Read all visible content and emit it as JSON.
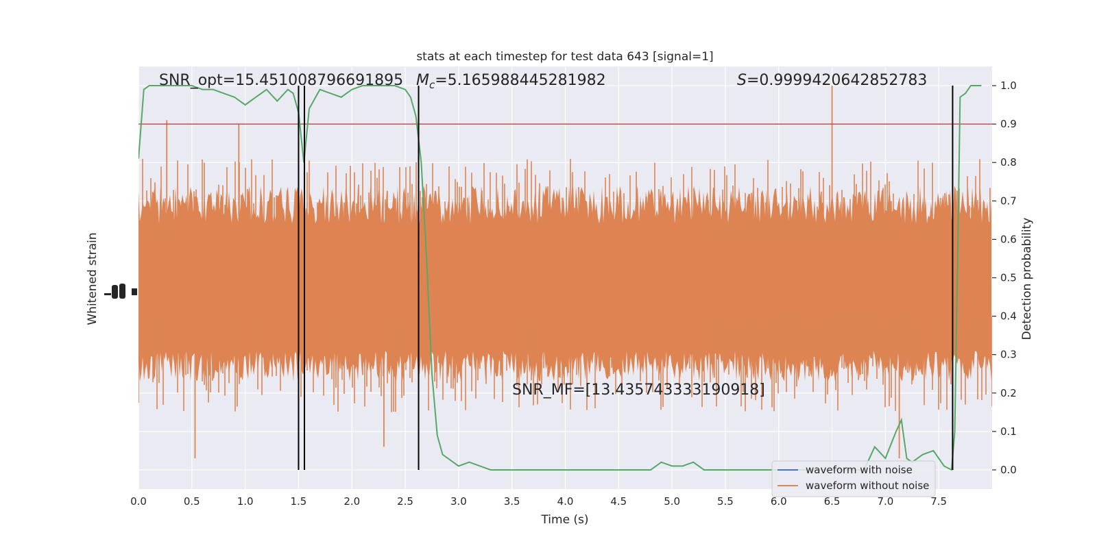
{
  "chart_data": {
    "type": "line",
    "title": "stats at each timestep for test data 643 [signal=1]",
    "xlabel": "Time (s)",
    "ylabel_left": "Whitened strain",
    "ylabel_right": "Detection probability",
    "xlim": [
      0.0,
      8.0
    ],
    "ylim_right": [
      -0.05,
      1.05
    ],
    "xticks": [
      0.0,
      0.5,
      1.0,
      1.5,
      2.0,
      2.5,
      3.0,
      3.5,
      4.0,
      4.5,
      5.0,
      5.5,
      6.0,
      6.5,
      7.0,
      7.5
    ],
    "xtick_labels": [
      "0.0",
      "0.5",
      "1.0",
      "1.5",
      "2.0",
      "2.5",
      "3.0",
      "3.5",
      "4.0",
      "4.5",
      "5.0",
      "5.5",
      "6.0",
      "6.5",
      "7.0",
      "7.5"
    ],
    "yticks_right": [
      0.0,
      0.1,
      0.2,
      0.3,
      0.4,
      0.5,
      0.6,
      0.7,
      0.8,
      0.9,
      1.0
    ],
    "ytick_labels_right": [
      "0.0",
      "0.1",
      "0.2",
      "0.3",
      "0.4",
      "0.5",
      "0.6",
      "0.7",
      "0.8",
      "0.9",
      "1.0"
    ],
    "grid": true,
    "legend_position": "bottom-right",
    "series": [
      {
        "name": "waveform with noise",
        "color": "#4c72b0"
      },
      {
        "name": "waveform without noise",
        "color": "#dd8452"
      }
    ],
    "detection_probability": {
      "color": "#55a868",
      "x": [
        0.0,
        0.05,
        0.1,
        0.2,
        0.3,
        0.4,
        0.5,
        0.6,
        0.7,
        0.8,
        0.9,
        1.0,
        1.1,
        1.2,
        1.3,
        1.4,
        1.45,
        1.5,
        1.55,
        1.6,
        1.7,
        1.8,
        1.9,
        2.0,
        2.1,
        2.2,
        2.3,
        2.4,
        2.5,
        2.55,
        2.6,
        2.65,
        2.7,
        2.75,
        2.8,
        2.85,
        2.9,
        3.0,
        3.1,
        3.2,
        3.3,
        3.5,
        3.7,
        4.0,
        4.3,
        4.5,
        4.8,
        4.9,
        5.0,
        5.1,
        5.2,
        5.3,
        5.5,
        5.8,
        6.0,
        6.1,
        6.2,
        6.3,
        6.5,
        6.8,
        6.9,
        7.0,
        7.1,
        7.15,
        7.2,
        7.25,
        7.35,
        7.45,
        7.55,
        7.62,
        7.65,
        7.68,
        7.7,
        7.75,
        7.8,
        7.9
      ],
      "y": [
        0.81,
        0.99,
        1.0,
        1.0,
        1.0,
        1.0,
        1.0,
        0.99,
        0.99,
        0.98,
        0.97,
        0.95,
        0.97,
        0.99,
        0.96,
        0.99,
        0.98,
        0.93,
        0.8,
        0.94,
        0.99,
        0.98,
        0.97,
        0.99,
        1.0,
        1.0,
        1.0,
        1.0,
        0.99,
        0.97,
        0.92,
        0.8,
        0.55,
        0.25,
        0.09,
        0.04,
        0.03,
        0.01,
        0.02,
        0.01,
        0.0,
        0.0,
        0.0,
        0.0,
        0.0,
        0.0,
        0.0,
        0.02,
        0.01,
        0.01,
        0.02,
        0.0,
        0.0,
        0.0,
        0.0,
        0.0,
        0.0,
        0.0,
        0.0,
        0.0,
        0.06,
        0.03,
        0.1,
        0.13,
        0.03,
        0.02,
        0.04,
        0.05,
        0.01,
        0.0,
        0.1,
        0.6,
        0.97,
        0.98,
        1.0,
        1.0
      ]
    },
    "threshold": {
      "y": 0.9,
      "color": "#c44e52"
    },
    "vertical_markers": [
      1.5,
      1.555,
      2.625,
      7.63
    ],
    "spike_values": [
      6.5,
      0.94,
      0.265,
      0.91,
      0.13,
      0.62
    ],
    "annotations": [
      {
        "text": "SNR_opt=15.451008796691895"
      },
      {
        "text_prefix": "M",
        "text_sub": "c",
        "text_rest": "=5.165988445281982"
      },
      {
        "text_prefix": "S",
        "text_rest": "=0.9999420642852783"
      },
      {
        "text": "SNR_MF=[13.435743333190918]"
      }
    ]
  }
}
